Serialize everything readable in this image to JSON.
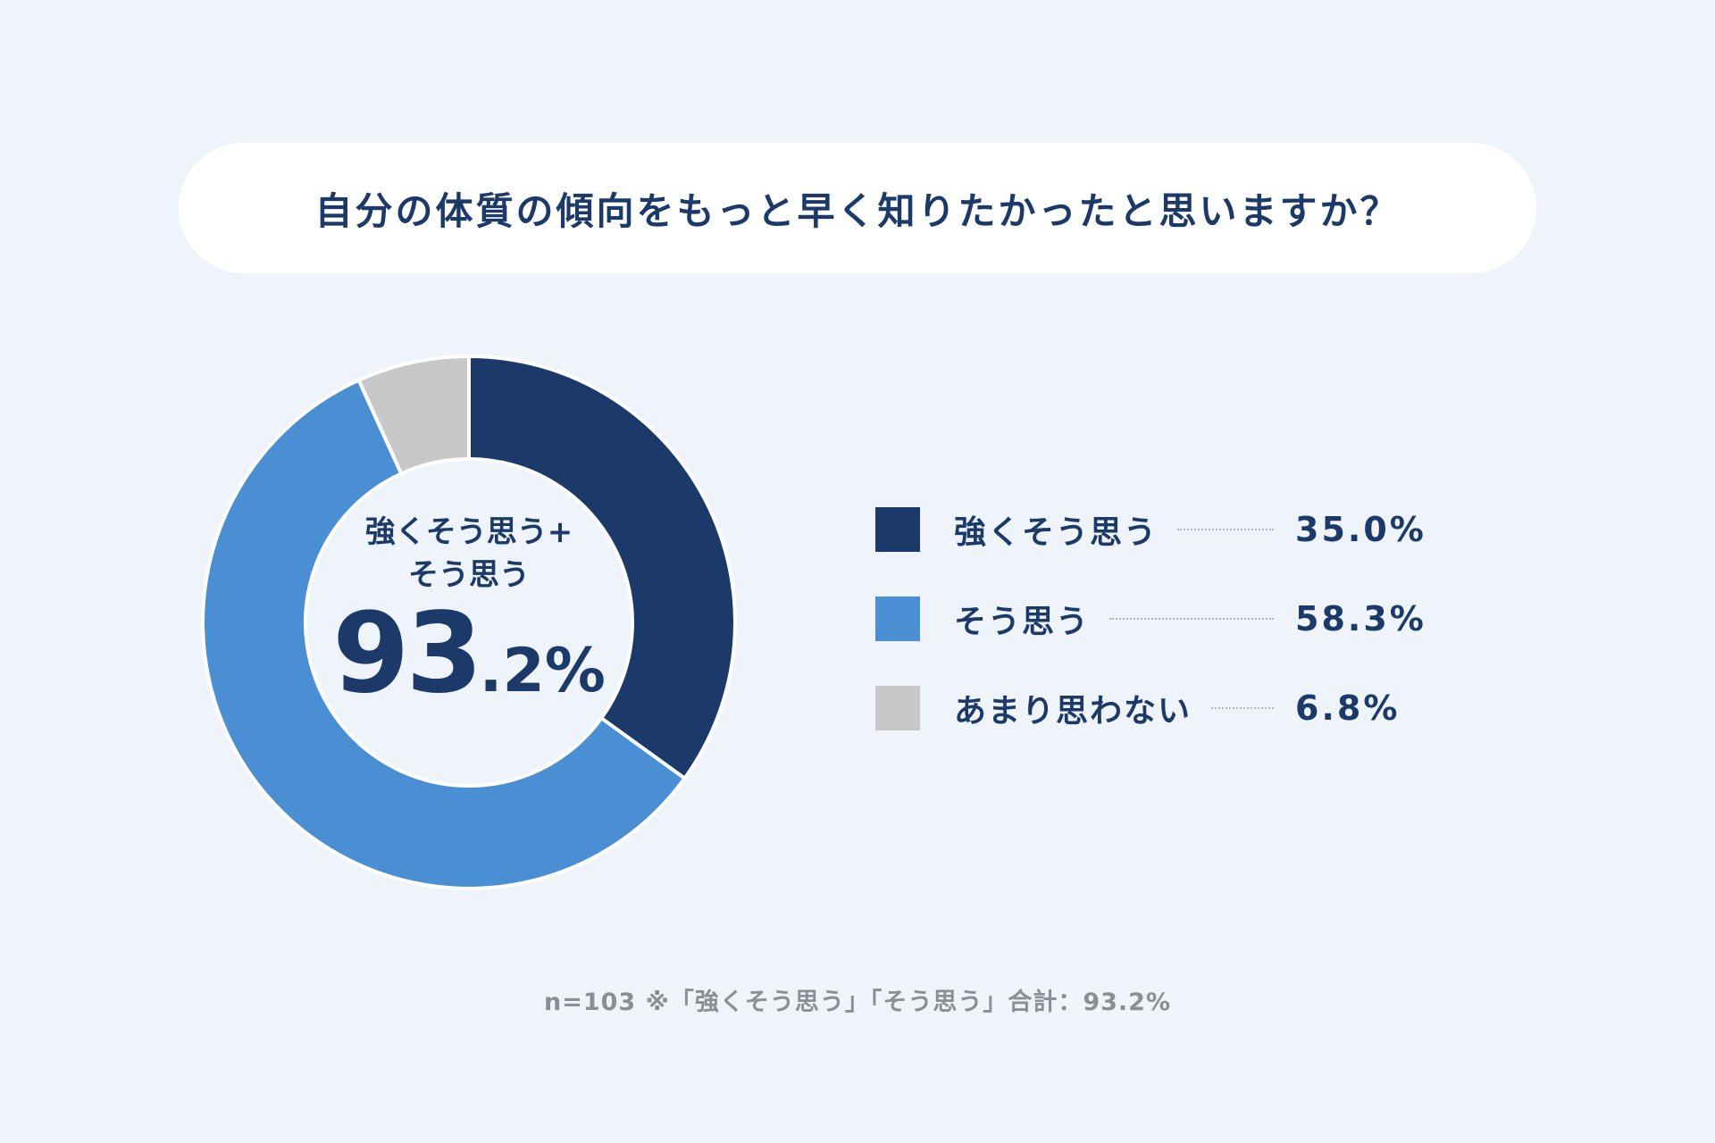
{
  "title": "自分の体質の傾向をもっと早く知りたかったと思いますか？",
  "chart_data": {
    "type": "pie",
    "donut": true,
    "series": [
      {
        "name": "強くそう思う",
        "value": 35.0,
        "label": "35.0%",
        "color": "#1c3a69"
      },
      {
        "name": "そう思う",
        "value": 58.3,
        "label": "58.3%",
        "color": "#4a8fd4"
      },
      {
        "name": "あまり思わない",
        "value": 6.8,
        "label": "6.8%",
        "color": "#c8c8c8"
      }
    ],
    "legend_position": "right"
  },
  "center": {
    "label_line1": "強くそう思う+",
    "label_line2": "そう思う",
    "value_int": "93",
    "value_dec": ".2%"
  },
  "footnote": "n=103 ※「強くそう思う」「そう思う」合計：93.2%"
}
